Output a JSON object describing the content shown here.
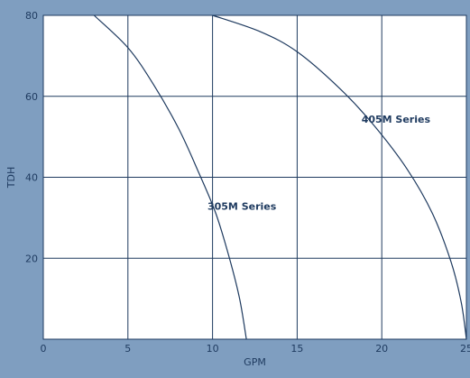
{
  "chart_data": {
    "type": "line",
    "xlabel": "GPM",
    "ylabel": "TDH",
    "xlim": [
      0,
      25
    ],
    "ylim": [
      0,
      80
    ],
    "x_ticks": [
      "0",
      "5",
      "10",
      "15",
      "20",
      "25"
    ],
    "y_ticks": [
      "20",
      "40",
      "60",
      "80"
    ],
    "grid": true,
    "series": [
      {
        "name": "305M Series",
        "points": [
          [
            3,
            80
          ],
          [
            5,
            72
          ],
          [
            6.5,
            63
          ],
          [
            8,
            52
          ],
          [
            9.2,
            41
          ],
          [
            10.2,
            31
          ],
          [
            11,
            20
          ],
          [
            11.6,
            10
          ],
          [
            12,
            0
          ]
        ]
      },
      {
        "name": "405M Series",
        "points": [
          [
            10,
            80
          ],
          [
            12.8,
            76
          ],
          [
            15,
            71
          ],
          [
            17.5,
            62
          ],
          [
            19.5,
            53
          ],
          [
            21.5,
            42
          ],
          [
            23,
            31
          ],
          [
            24.1,
            19
          ],
          [
            24.7,
            9
          ],
          [
            25,
            0
          ]
        ]
      }
    ],
    "labels": [
      {
        "series": "305M Series",
        "text": "305M Series",
        "x": 9.7,
        "y": 32
      },
      {
        "series": "405M Series",
        "text": "405M Series",
        "x": 18.8,
        "y": 53.5
      }
    ],
    "colors": {
      "background": "#7f9ec0",
      "plot_area": "#ffffff",
      "lines": "#1e3a5f",
      "text": "#1e3a5f"
    }
  }
}
